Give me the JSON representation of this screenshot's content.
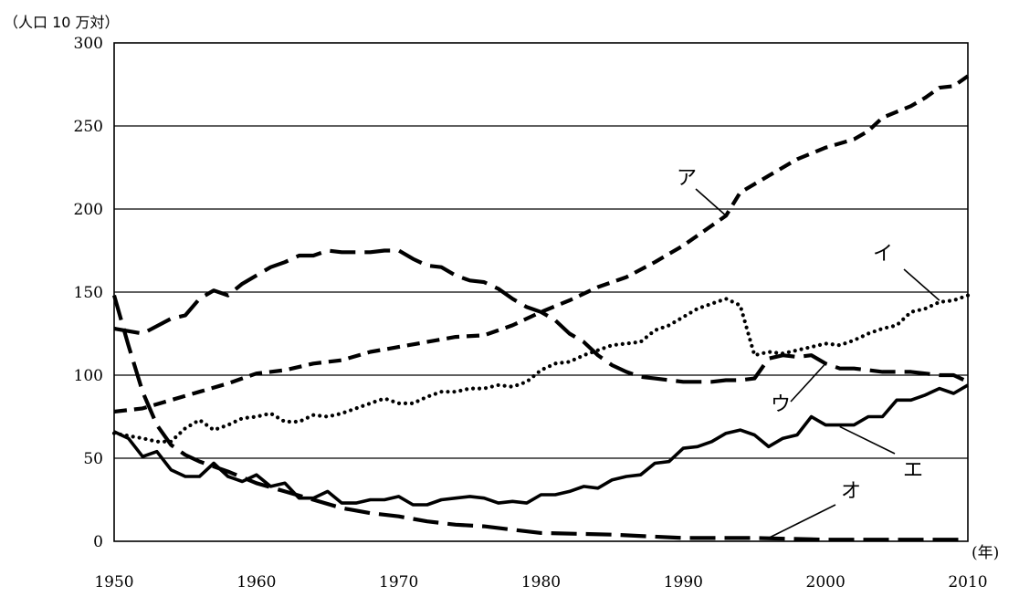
{
  "chart_data": {
    "type": "line",
    "ylabel": "（人口 10 万対）",
    "xunit": "(年)",
    "xlim": [
      1950,
      2010
    ],
    "ylim": [
      0,
      300
    ],
    "xticks": [
      1950,
      1960,
      1970,
      1980,
      1990,
      2000,
      2010
    ],
    "yticks": [
      0,
      50,
      100,
      150,
      200,
      250,
      300
    ],
    "grid": "horizontal",
    "series": [
      {
        "name": "ア",
        "style": "dashed",
        "x": [
          1950,
          1952,
          1954,
          1956,
          1958,
          1960,
          1962,
          1964,
          1966,
          1968,
          1970,
          1972,
          1974,
          1976,
          1978,
          1980,
          1982,
          1984,
          1986,
          1988,
          1990,
          1992,
          1993,
          1994,
          1995,
          1996,
          1998,
          2000,
          2002,
          2003,
          2004,
          2006,
          2007,
          2008,
          2009,
          2010
        ],
        "values": [
          78,
          80,
          85,
          90,
          95,
          101,
          103,
          107,
          109,
          114,
          117,
          120,
          123,
          124,
          130,
          138,
          145,
          153,
          159,
          168,
          178,
          190,
          196,
          210,
          215,
          220,
          230,
          237,
          242,
          247,
          255,
          262,
          267,
          273,
          274,
          280
        ]
      },
      {
        "name": "イ",
        "style": "dotted",
        "x": [
          1950,
          1952,
          1953,
          1954,
          1955,
          1956,
          1957,
          1958,
          1959,
          1960,
          1961,
          1962,
          1963,
          1964,
          1965,
          1966,
          1967,
          1968,
          1969,
          1970,
          1971,
          1972,
          1973,
          1974,
          1975,
          1976,
          1977,
          1978,
          1979,
          1980,
          1981,
          1982,
          1983,
          1984,
          1985,
          1986,
          1987,
          1988,
          1989,
          1990,
          1991,
          1992,
          1993,
          1994,
          1995,
          1996,
          1997,
          1998,
          1999,
          2000,
          2001,
          2002,
          2003,
          2004,
          2005,
          2006,
          2007,
          2008,
          2009,
          2010
        ],
        "values": [
          65,
          62,
          60,
          60,
          68,
          73,
          67,
          70,
          74,
          75,
          77,
          72,
          72,
          76,
          75,
          77,
          80,
          83,
          86,
          83,
          83,
          87,
          90,
          90,
          92,
          92,
          94,
          93,
          96,
          103,
          107,
          108,
          112,
          115,
          118,
          119,
          120,
          127,
          130,
          135,
          140,
          143,
          146,
          142,
          112,
          114,
          113,
          115,
          117,
          119,
          118,
          121,
          125,
          128,
          130,
          138,
          140,
          144,
          145,
          148
        ]
      },
      {
        "name": "ウ",
        "style": "long-dashed",
        "x": [
          1950,
          1952,
          1954,
          1955,
          1956,
          1957,
          1958,
          1959,
          1960,
          1961,
          1962,
          1963,
          1964,
          1965,
          1966,
          1967,
          1968,
          1969,
          1970,
          1971,
          1972,
          1973,
          1974,
          1975,
          1976,
          1977,
          1978,
          1979,
          1980,
          1981,
          1982,
          1983,
          1984,
          1985,
          1986,
          1987,
          1988,
          1989,
          1990,
          1991,
          1992,
          1993,
          1994,
          1995,
          1996,
          1997,
          1998,
          1999,
          2000,
          2001,
          2002,
          2003,
          2004,
          2005,
          2006,
          2007,
          2008,
          2009,
          2010
        ],
        "values": [
          128,
          125,
          134,
          136,
          146,
          151,
          148,
          155,
          160,
          165,
          168,
          172,
          172,
          175,
          174,
          174,
          174,
          175,
          175,
          170,
          166,
          165,
          160,
          157,
          156,
          152,
          146,
          141,
          138,
          133,
          125,
          120,
          112,
          106,
          102,
          99,
          98,
          97,
          96,
          96,
          96,
          97,
          97,
          98,
          110,
          112,
          111,
          112,
          107,
          104,
          104,
          103,
          102,
          102,
          102,
          101,
          100,
          100,
          96
        ]
      },
      {
        "name": "エ",
        "style": "solid",
        "x": [
          1950,
          1951,
          1952,
          1953,
          1954,
          1955,
          1956,
          1957,
          1958,
          1959,
          1960,
          1961,
          1962,
          1963,
          1964,
          1965,
          1966,
          1967,
          1968,
          1969,
          1970,
          1971,
          1972,
          1973,
          1974,
          1975,
          1976,
          1977,
          1978,
          1979,
          1980,
          1981,
          1982,
          1983,
          1984,
          1985,
          1986,
          1987,
          1988,
          1989,
          1990,
          1991,
          1992,
          1993,
          1994,
          1995,
          1996,
          1997,
          1998,
          1999,
          2000,
          2001,
          2002,
          2003,
          2004,
          2005,
          2006,
          2007,
          2008,
          2009,
          2010
        ],
        "values": [
          66,
          62,
          51,
          54,
          43,
          39,
          39,
          47,
          39,
          36,
          40,
          33,
          35,
          26,
          26,
          30,
          23,
          23,
          25,
          25,
          27,
          22,
          22,
          25,
          26,
          27,
          26,
          23,
          24,
          23,
          28,
          28,
          30,
          33,
          32,
          37,
          39,
          40,
          47,
          48,
          56,
          57,
          60,
          65,
          67,
          64,
          57,
          62,
          64,
          75,
          70,
          70,
          70,
          75,
          75,
          85,
          85,
          88,
          92,
          89,
          94
        ]
      },
      {
        "name": "オ",
        "style": "long-dashed",
        "x": [
          1950,
          1951,
          1952,
          1953,
          1954,
          1955,
          1956,
          1958,
          1960,
          1962,
          1964,
          1966,
          1968,
          1970,
          1972,
          1974,
          1976,
          1978,
          1980,
          1985,
          1990,
          1995,
          2000,
          2005,
          2010
        ],
        "values": [
          148,
          118,
          90,
          70,
          58,
          52,
          48,
          42,
          35,
          30,
          25,
          20,
          17,
          15,
          12,
          10,
          9,
          7,
          5,
          4,
          2,
          2,
          1,
          1,
          1
        ]
      }
    ],
    "annotations": [
      {
        "text": "ア",
        "series": "ア",
        "x": 1993,
        "y": 196
      },
      {
        "text": "イ",
        "series": "イ",
        "x": 2008,
        "y": 145
      },
      {
        "text": "ウ",
        "series": "ウ",
        "x": 2000,
        "y": 107
      },
      {
        "text": "エ",
        "series": "エ",
        "x": 2001,
        "y": 69
      },
      {
        "text": "オ",
        "series": "オ",
        "x": 1996,
        "y": 2
      }
    ]
  }
}
